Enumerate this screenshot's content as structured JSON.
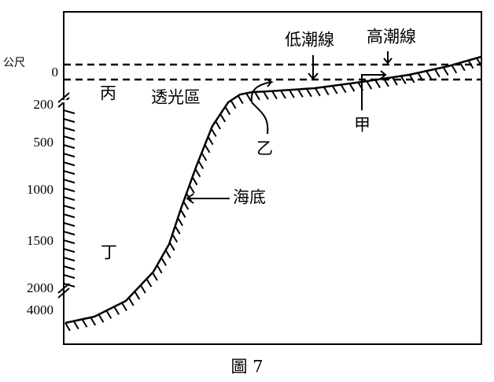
{
  "axis": {
    "unit": "公尺",
    "labels": [
      "0",
      "200",
      "500",
      "1000",
      "1500",
      "2000",
      "4000"
    ]
  },
  "labels": {
    "low_tide": "低潮線",
    "high_tide": "高潮線",
    "bing": "丙",
    "photic": "透光區",
    "yi": "乙",
    "jia": "甲",
    "seabed": "海底",
    "ding": "丁"
  },
  "caption": "圖 7"
}
